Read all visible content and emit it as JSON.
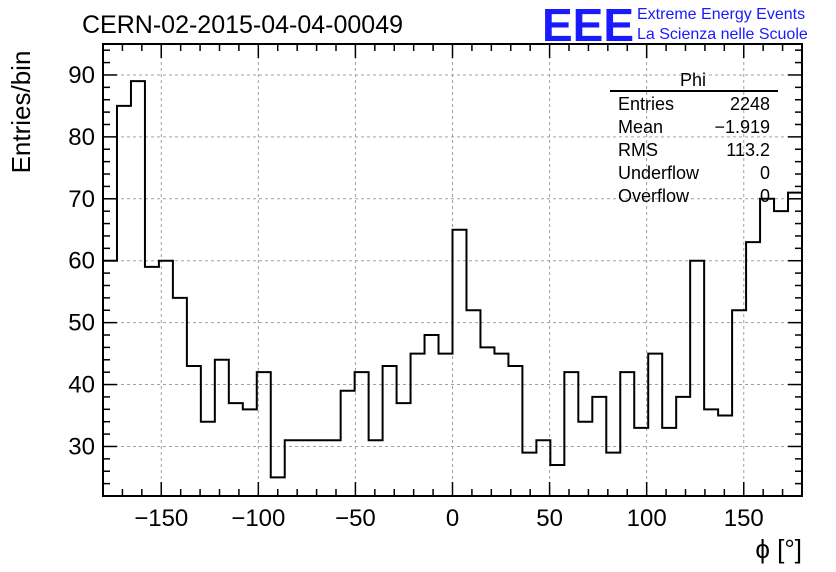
{
  "chart_data": {
    "type": "bar",
    "title": "CERN-02-2015-04-04-00049",
    "xlabel": "ϕ [°]",
    "ylabel": "Entries/bin",
    "xlim": [
      -180,
      180
    ],
    "ylim": [
      22,
      95
    ],
    "x_ticks": [
      -150,
      -100,
      -50,
      0,
      50,
      100,
      150
    ],
    "x_tick_labels": [
      "−150",
      "−100",
      "−50",
      "0",
      "50",
      "100",
      "150"
    ],
    "y_ticks": [
      30,
      40,
      50,
      60,
      70,
      80,
      90
    ],
    "y_tick_labels": [
      "30",
      "40",
      "50",
      "60",
      "70",
      "80",
      "90"
    ],
    "grid": true,
    "bin_width": 7.2,
    "values": [
      60,
      85,
      89,
      59,
      60,
      54,
      43,
      34,
      44,
      37,
      36,
      42,
      25,
      31,
      31,
      31,
      31,
      39,
      42,
      31,
      43,
      37,
      45,
      48,
      45,
      65,
      52,
      46,
      45,
      43,
      29,
      31,
      27,
      42,
      34,
      38,
      29,
      42,
      33,
      45,
      33,
      38,
      60,
      36,
      35,
      52,
      63,
      70,
      68,
      71
    ],
    "stats": {
      "name": "Phi",
      "rows": [
        {
          "label": "Entries",
          "value": "2248"
        },
        {
          "label": "Mean",
          "value": "−1.919"
        },
        {
          "label": "RMS",
          "value": "113.2"
        },
        {
          "label": "Underflow",
          "value": "0"
        },
        {
          "label": "Overflow",
          "value": "0"
        }
      ]
    }
  },
  "logo": {
    "acronym": "EEE",
    "line1": "Extreme Energy Events",
    "line2": "La Scienza nelle Scuole",
    "color": "#1a1aff"
  },
  "colors": {
    "grid": "#a0a0a0",
    "line": "#000000"
  }
}
